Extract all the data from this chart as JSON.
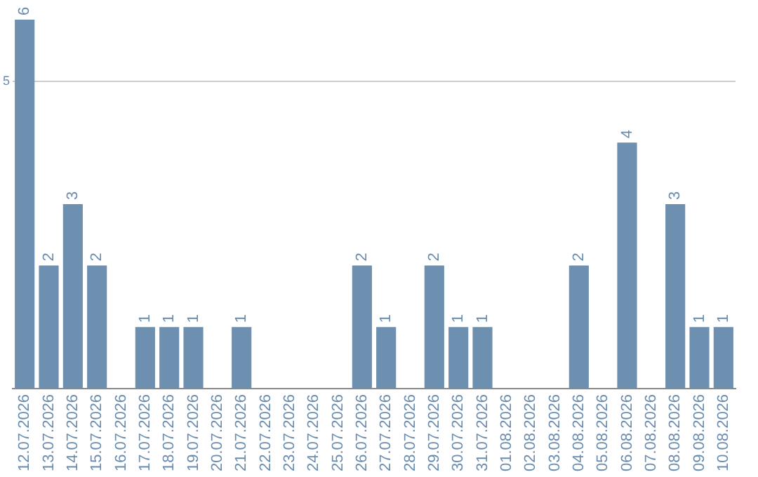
{
  "chart_data": {
    "type": "bar",
    "categories": [
      "12.07.2026",
      "13.07.2026",
      "14.07.2026",
      "15.07.2026",
      "16.07.2026",
      "17.07.2026",
      "18.07.2026",
      "19.07.2026",
      "20.07.2026",
      "21.07.2026",
      "22.07.2026",
      "23.07.2026",
      "24.07.2026",
      "25.07.2026",
      "26.07.2026",
      "27.07.2026",
      "28.07.2026",
      "29.07.2026",
      "30.07.2026",
      "31.07.2026",
      "01.08.2026",
      "02.08.2026",
      "03.08.2026",
      "04.08.2026",
      "05.08.2026",
      "06.08.2026",
      "07.08.2026",
      "08.08.2026",
      "09.08.2026",
      "10.08.2026"
    ],
    "values": [
      6,
      2,
      3,
      2,
      0,
      1,
      1,
      1,
      0,
      1,
      0,
      0,
      0,
      0,
      2,
      1,
      0,
      2,
      1,
      1,
      0,
      0,
      0,
      2,
      0,
      4,
      0,
      3,
      1,
      1
    ],
    "value_labels": [
      "6",
      "2",
      "3",
      "2",
      null,
      "1",
      "1",
      "1",
      null,
      "1",
      null,
      null,
      null,
      null,
      "2",
      "1",
      null,
      "2",
      "1",
      "1",
      null,
      null,
      null,
      "2",
      null,
      "4",
      null,
      "3",
      "1",
      "1"
    ],
    "color": "#6d8fb0",
    "ylim": [
      0,
      6
    ],
    "yticks": [
      5
    ],
    "grid": "y",
    "legend": false
  }
}
